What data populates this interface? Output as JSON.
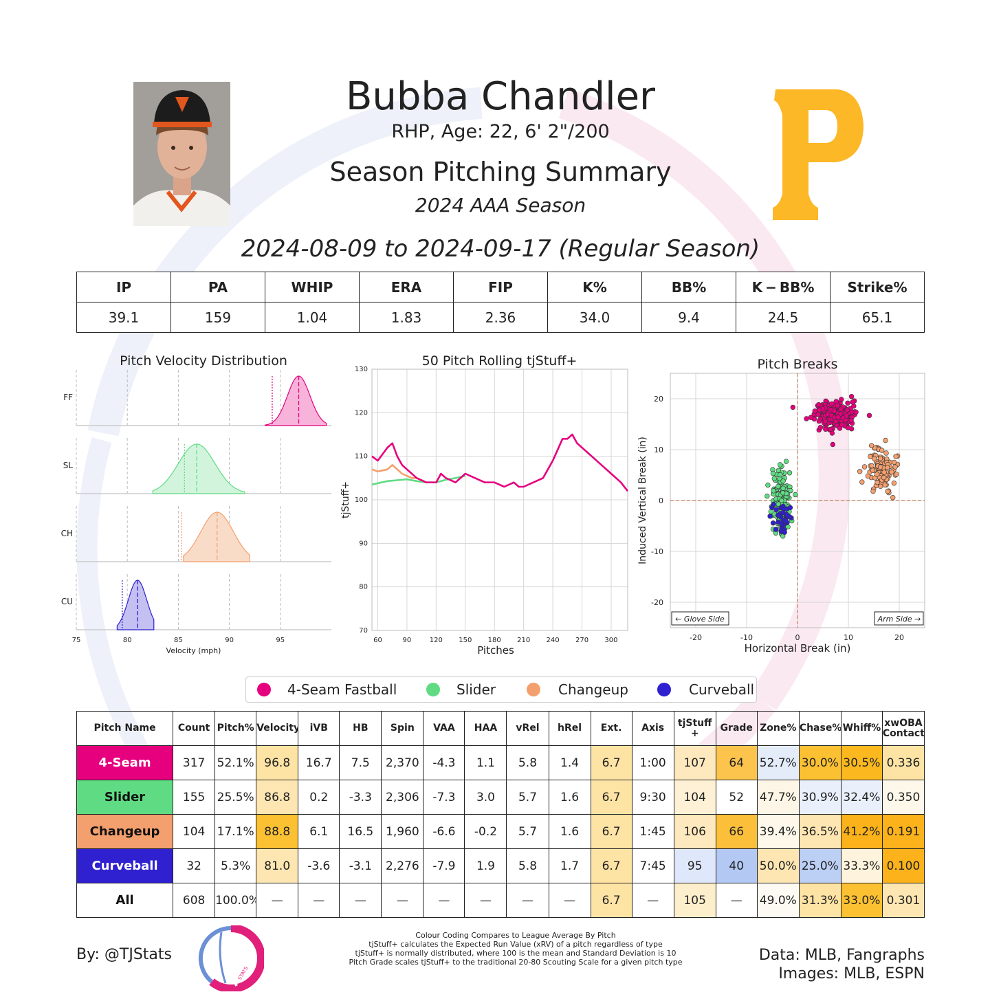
{
  "player": {
    "name": "Bubba Chandler",
    "bio": "RHP, Age: 22, 6' 2\"/200",
    "summary_title": "Season Pitching Summary",
    "season": "2024 AAA Season",
    "date_range": "2024-08-09 to 2024-09-17 (Regular Season)"
  },
  "colors": {
    "four_seam": "#e6007e",
    "slider": "#5fdc83",
    "changeup": "#f4a06e",
    "curveball": "#2f21cf",
    "team_gold": "#fdb827"
  },
  "season_stats": {
    "headers": [
      "IP",
      "PA",
      "WHIP",
      "ERA",
      "FIP",
      "K%",
      "BB%",
      "K − BB%",
      "Strike%"
    ],
    "values": [
      "39.1",
      "159",
      "1.04",
      "1.83",
      "2.36",
      "34.0",
      "9.4",
      "24.5",
      "65.1"
    ]
  },
  "chart_data": [
    {
      "type": "area",
      "title": "Pitch Velocity Distribution",
      "xlabel": "Velocity (mph)",
      "xlim": [
        75,
        100
      ],
      "x_ticks": [
        "75",
        "80",
        "85",
        "90",
        "95"
      ],
      "series": [
        {
          "name": "FF",
          "mean": 96.8,
          "sd": 1.1,
          "range": [
            93.5,
            99.5
          ],
          "league_avg": 94.2
        },
        {
          "name": "SL",
          "mean": 86.8,
          "sd": 1.8,
          "range": [
            82.5,
            91.5
          ],
          "league_avg": 85.6
        },
        {
          "name": "CH",
          "mean": 88.8,
          "sd": 1.6,
          "range": [
            85.5,
            92.0
          ],
          "league_avg": 85.3
        },
        {
          "name": "CU",
          "mean": 81.0,
          "sd": 0.9,
          "range": [
            79.0,
            82.6
          ],
          "league_avg": 79.5
        }
      ]
    },
    {
      "type": "line",
      "title": "50 Pitch Rolling tjStuff+",
      "xlabel": "Pitches",
      "ylabel": "tjStuff+",
      "xlim": [
        54,
        317
      ],
      "ylim": [
        70,
        130
      ],
      "x_ticks": [
        "60",
        "90",
        "120",
        "150",
        "180",
        "210",
        "240",
        "270",
        "300"
      ],
      "y_ticks": [
        "70",
        "80",
        "90",
        "100",
        "110",
        "120",
        "130"
      ],
      "series": [
        {
          "name": "4-Seam Fastball",
          "x": [
            54,
            60,
            70,
            75,
            80,
            85,
            90,
            100,
            110,
            115,
            120,
            125,
            130,
            140,
            150,
            160,
            170,
            180,
            190,
            200,
            205,
            210,
            220,
            230,
            240,
            250,
            255,
            260,
            265,
            270,
            280,
            290,
            300,
            310,
            317
          ],
          "y": [
            110,
            109,
            112,
            113,
            110,
            108,
            107,
            105,
            104,
            104,
            104,
            106,
            105,
            104,
            106,
            105,
            104,
            104,
            103,
            104,
            103,
            103,
            104,
            105,
            109,
            114,
            114,
            115,
            113,
            112,
            110,
            108,
            106,
            104,
            102
          ]
        },
        {
          "name": "Slider",
          "x": [
            54,
            60,
            70,
            80,
            90,
            100,
            110,
            120,
            130,
            140,
            150
          ],
          "y": [
            103.5,
            103.8,
            104.3,
            104.5,
            104.7,
            104.3,
            104,
            104,
            104.6,
            105,
            105.5
          ]
        },
        {
          "name": "Changeup",
          "x": [
            54,
            60,
            70,
            75,
            80,
            85,
            90,
            95,
            100
          ],
          "y": [
            107,
            106.5,
            107,
            108,
            107,
            106,
            105.5,
            105,
            105
          ]
        }
      ]
    },
    {
      "type": "scatter",
      "title": "Pitch Breaks",
      "xlabel": "Horizontal Break (in)",
      "ylabel": "Induced Vertical Break (in)",
      "xlim": [
        -25,
        25
      ],
      "ylim": [
        -25,
        25
      ],
      "x_ticks": [
        "-20",
        "-10",
        "0",
        "10",
        "20"
      ],
      "y_ticks": [
        "20",
        "10",
        "0",
        "-10",
        "-20"
      ],
      "annotations": [
        "← Glove Side",
        "Arm Side →"
      ],
      "series": [
        {
          "name": "4-Seam Fastball",
          "count": 317,
          "center": [
            7.5,
            16.7
          ],
          "spread": [
            2.0,
            1.3
          ]
        },
        {
          "name": "Slider",
          "count": 155,
          "center": [
            -3.3,
            0.2
          ],
          "spread": [
            1.0,
            3.0
          ]
        },
        {
          "name": "Changeup",
          "count": 104,
          "center": [
            16.5,
            6.1
          ],
          "spread": [
            1.3,
            2.3
          ]
        },
        {
          "name": "Curveball",
          "count": 32,
          "center": [
            -3.1,
            -3.6
          ],
          "spread": [
            1.1,
            1.4
          ]
        }
      ]
    }
  ],
  "legend": [
    {
      "label": "4-Seam Fastball",
      "color": "#e6007e"
    },
    {
      "label": "Slider",
      "color": "#5fdc83"
    },
    {
      "label": "Changeup",
      "color": "#f4a06e"
    },
    {
      "label": "Curveball",
      "color": "#2f21cf"
    }
  ],
  "pitch_table": {
    "headers": [
      "Pitch Name",
      "Count",
      "Pitch%",
      "Velocity",
      "iVB",
      "HB",
      "Spin",
      "VAA",
      "HAA",
      "vRel",
      "hRel",
      "Ext.",
      "Axis",
      "tjStuff +",
      "Grade",
      "Zone%",
      "Chase%",
      "Whiff%",
      "xwOBA Contact"
    ],
    "rows": [
      {
        "name": "4-Seam",
        "bg": "#e6007e",
        "fg": "#ffffff",
        "cells": [
          "317",
          "52.1%",
          "96.8",
          "16.7",
          "7.5",
          "2,370",
          "-4.3",
          "1.1",
          "5.8",
          "1.4",
          "6.7",
          "1:00",
          "107",
          "64",
          "52.7%",
          "30.0%",
          "30.5%",
          "0.336"
        ],
        "shades": [
          "",
          "",
          "#fde3a4",
          "",
          "",
          "",
          "",
          "",
          "",
          "",
          "#fde3a4",
          "",
          "#fde9bd",
          "#fcc44c",
          "#e4ecfa",
          "#fcc132",
          "#fcb91f",
          "#fde3a4"
        ]
      },
      {
        "name": "Slider",
        "bg": "#5fdc83",
        "fg": "#111111",
        "cells": [
          "155",
          "25.5%",
          "86.8",
          "0.2",
          "-3.3",
          "2,306",
          "-7.3",
          "3.0",
          "5.7",
          "1.6",
          "6.7",
          "9:30",
          "104",
          "52",
          "47.7%",
          "30.9%",
          "32.4%",
          "0.350"
        ],
        "shades": [
          "",
          "",
          "#fde6b2",
          "",
          "",
          "",
          "",
          "",
          "",
          "",
          "#fde3a4",
          "",
          "#fef1d5",
          "",
          "#fdf6e6",
          "#e9effb",
          "#e9effb",
          "#fef8ea"
        ]
      },
      {
        "name": "Changeup",
        "bg": "#f4a06e",
        "fg": "#111111",
        "cells": [
          "104",
          "17.1%",
          "88.8",
          "6.1",
          "16.5",
          "1,960",
          "-6.6",
          "-0.2",
          "5.7",
          "1.6",
          "6.7",
          "1:45",
          "106",
          "66",
          "39.4%",
          "36.5%",
          "41.2%",
          "0.191"
        ],
        "shades": [
          "",
          "",
          "#fcc132",
          "",
          "",
          "",
          "",
          "",
          "",
          "",
          "#fde3a4",
          "",
          "#fde9bd",
          "#fcbf3a",
          "#fef8ea",
          "#fde6b2",
          "#fbb21b",
          "#fbb21b"
        ]
      },
      {
        "name": "Curveball",
        "bg": "#2f21cf",
        "fg": "#ffffff",
        "cells": [
          "32",
          "5.3%",
          "81.0",
          "-3.6",
          "-3.1",
          "2,276",
          "-7.9",
          "1.9",
          "5.8",
          "1.7",
          "6.7",
          "7:45",
          "95",
          "40",
          "50.0%",
          "25.0%",
          "33.3%",
          "0.100"
        ],
        "shades": [
          "",
          "",
          "#fde6b2",
          "",
          "",
          "",
          "",
          "",
          "",
          "",
          "#fde3a4",
          "",
          "#dfe8fb",
          "#b3c8f3",
          "#fde6b2",
          "#bccff5",
          "#fef3dc",
          "#fbb21b"
        ]
      },
      {
        "name": "All",
        "bg": "#ffffff",
        "fg": "#111111",
        "cells": [
          "608",
          "100.0%",
          "—",
          "—",
          "—",
          "—",
          "—",
          "—",
          "—",
          "—",
          "6.7",
          "—",
          "105",
          "—",
          "49.0%",
          "31.3%",
          "33.0%",
          "0.301"
        ],
        "shades": [
          "",
          "",
          "",
          "",
          "",
          "",
          "",
          "",
          "",
          "",
          "#fde3a4",
          "",
          "#fdeecc",
          "",
          "#fdfaf3",
          "#fde3a4",
          "#fcc132",
          "#fde6b2"
        ]
      }
    ]
  },
  "footer": {
    "by": "By: @TJStats",
    "notes": [
      "Colour Coding Compares to League Average By Pitch",
      "tjStuff+ calculates the Expected Run Value (xRV) of a pitch regardless of type",
      "tjStuff+ is normally distributed, where 100 is the mean and Standard Deviation is 10",
      "Pitch Grade scales tjStuff+ to the traditional 20-80 Scouting Scale for a given pitch type"
    ],
    "data_source": "Data: MLB, Fangraphs",
    "images_source": "Images: MLB, ESPN",
    "logo_text": "STATS"
  }
}
